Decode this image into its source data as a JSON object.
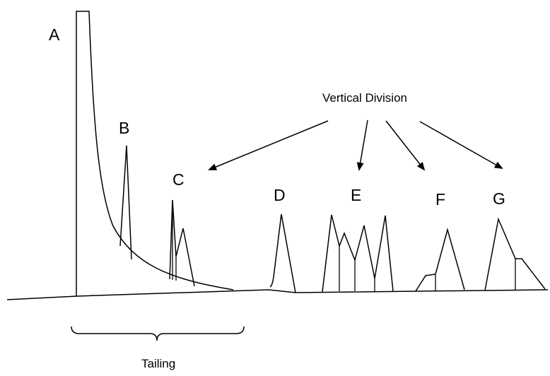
{
  "diagram": {
    "peak_labels": {
      "a": "A",
      "b": "B",
      "c": "C",
      "d": "D",
      "e": "E",
      "f": "F",
      "g": "G"
    },
    "annotation_top": "Vertical Division",
    "annotation_bottom": "Tailing"
  }
}
